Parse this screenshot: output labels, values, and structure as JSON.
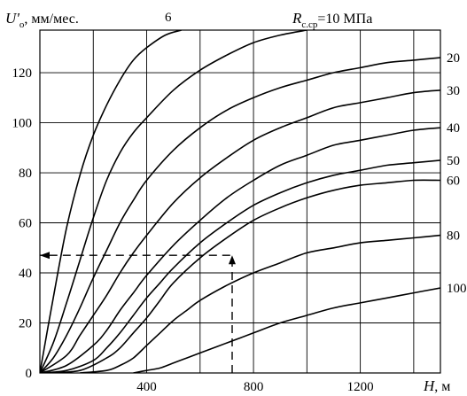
{
  "chart_data": {
    "type": "line",
    "title": "",
    "ylabel": {
      "symbol": "U'",
      "subscript": "о",
      "unit": ", мм/мес."
    },
    "xlabel": {
      "symbol": "H",
      "unit": ", м"
    },
    "annotation": {
      "symbol": "R",
      "subscript": "с.ср",
      "text": "=10 МПа"
    },
    "xlim": [
      0,
      1500
    ],
    "ylim": [
      0,
      137
    ],
    "x_ticks": [
      {
        "value": 400,
        "label": "400"
      },
      {
        "value": 800,
        "label": "800"
      },
      {
        "value": 1200,
        "label": "1200"
      }
    ],
    "y_ticks": [
      {
        "value": 0,
        "label": "0"
      },
      {
        "value": 20,
        "label": "20"
      },
      {
        "value": 40,
        "label": "40"
      },
      {
        "value": 60,
        "label": "60"
      },
      {
        "value": 80,
        "label": "80"
      },
      {
        "value": 100,
        "label": "100"
      },
      {
        "value": 120,
        "label": "120"
      }
    ],
    "grid": {
      "x_step": 200,
      "y_step": 20,
      "visible": true
    },
    "series": [
      {
        "name": "6",
        "label_anchor": "top",
        "points": [
          [
            0,
            0
          ],
          [
            50,
            30
          ],
          [
            100,
            58
          ],
          [
            150,
            79
          ],
          [
            200,
            95
          ],
          [
            250,
            107
          ],
          [
            300,
            117
          ],
          [
            350,
            125
          ],
          [
            400,
            130
          ],
          [
            470,
            135
          ],
          [
            530,
            137
          ]
        ]
      },
      {
        "name": "",
        "points": [
          [
            0,
            0
          ],
          [
            50,
            12
          ],
          [
            100,
            28
          ],
          [
            150,
            45
          ],
          [
            200,
            62
          ],
          [
            250,
            77
          ],
          [
            300,
            88
          ],
          [
            350,
            96
          ],
          [
            400,
            102
          ],
          [
            500,
            113
          ],
          [
            600,
            121
          ],
          [
            700,
            127
          ],
          [
            800,
            132
          ],
          [
            900,
            135
          ],
          [
            1000,
            137
          ]
        ]
      },
      {
        "name": "20",
        "points": [
          [
            0,
            0
          ],
          [
            50,
            6
          ],
          [
            100,
            15
          ],
          [
            150,
            26
          ],
          [
            200,
            38
          ],
          [
            250,
            49
          ],
          [
            300,
            60
          ],
          [
            350,
            69
          ],
          [
            400,
            77
          ],
          [
            500,
            89
          ],
          [
            600,
            98
          ],
          [
            700,
            105
          ],
          [
            800,
            110
          ],
          [
            900,
            114
          ],
          [
            1000,
            117
          ],
          [
            1100,
            120
          ],
          [
            1200,
            122
          ],
          [
            1300,
            124
          ],
          [
            1400,
            125
          ],
          [
            1500,
            126
          ]
        ]
      },
      {
        "name": "30",
        "points": [
          [
            0,
            0
          ],
          [
            100,
            7
          ],
          [
            150,
            15
          ],
          [
            200,
            23
          ],
          [
            250,
            31
          ],
          [
            300,
            40
          ],
          [
            350,
            48
          ],
          [
            400,
            55
          ],
          [
            500,
            68
          ],
          [
            600,
            78
          ],
          [
            700,
            86
          ],
          [
            800,
            93
          ],
          [
            900,
            98
          ],
          [
            1000,
            102
          ],
          [
            1100,
            106
          ],
          [
            1200,
            108
          ],
          [
            1300,
            110
          ],
          [
            1400,
            112
          ],
          [
            1500,
            113
          ]
        ]
      },
      {
        "name": "40",
        "points": [
          [
            0,
            0
          ],
          [
            100,
            3
          ],
          [
            200,
            11
          ],
          [
            250,
            17
          ],
          [
            300,
            25
          ],
          [
            350,
            32
          ],
          [
            400,
            39
          ],
          [
            500,
            51
          ],
          [
            600,
            61
          ],
          [
            700,
            70
          ],
          [
            800,
            77
          ],
          [
            900,
            83
          ],
          [
            1000,
            87
          ],
          [
            1100,
            91
          ],
          [
            1200,
            93
          ],
          [
            1300,
            95
          ],
          [
            1400,
            97
          ],
          [
            1500,
            98
          ]
        ]
      },
      {
        "name": "50",
        "points": [
          [
            0,
            0
          ],
          [
            100,
            1
          ],
          [
            200,
            5
          ],
          [
            250,
            10
          ],
          [
            300,
            16
          ],
          [
            350,
            23
          ],
          [
            400,
            30
          ],
          [
            450,
            36
          ],
          [
            500,
            42
          ],
          [
            600,
            52
          ],
          [
            700,
            60
          ],
          [
            800,
            67
          ],
          [
            900,
            72
          ],
          [
            1000,
            76
          ],
          [
            1100,
            79
          ],
          [
            1200,
            81
          ],
          [
            1300,
            83
          ],
          [
            1400,
            84
          ],
          [
            1500,
            85
          ]
        ]
      },
      {
        "name": "60",
        "points": [
          [
            30,
            0
          ],
          [
            150,
            1
          ],
          [
            250,
            6
          ],
          [
            300,
            10
          ],
          [
            350,
            16
          ],
          [
            400,
            22
          ],
          [
            450,
            29
          ],
          [
            500,
            36
          ],
          [
            600,
            46
          ],
          [
            700,
            54
          ],
          [
            800,
            61
          ],
          [
            900,
            66
          ],
          [
            1000,
            70
          ],
          [
            1100,
            73
          ],
          [
            1200,
            75
          ],
          [
            1300,
            76
          ],
          [
            1400,
            77
          ],
          [
            1500,
            77
          ]
        ]
      },
      {
        "name": "80",
        "points": [
          [
            150,
            0
          ],
          [
            250,
            1
          ],
          [
            300,
            3
          ],
          [
            350,
            6
          ],
          [
            400,
            11
          ],
          [
            450,
            16
          ],
          [
            500,
            21
          ],
          [
            550,
            25
          ],
          [
            600,
            29
          ],
          [
            700,
            35
          ],
          [
            800,
            40
          ],
          [
            900,
            44
          ],
          [
            1000,
            48
          ],
          [
            1100,
            50
          ],
          [
            1200,
            52
          ],
          [
            1300,
            53
          ],
          [
            1400,
            54
          ],
          [
            1500,
            55
          ]
        ]
      },
      {
        "name": "100",
        "points": [
          [
            350,
            0
          ],
          [
            400,
            1
          ],
          [
            450,
            2
          ],
          [
            500,
            4
          ],
          [
            550,
            6
          ],
          [
            600,
            8
          ],
          [
            700,
            12
          ],
          [
            800,
            16
          ],
          [
            900,
            20
          ],
          [
            1000,
            23
          ],
          [
            1100,
            26
          ],
          [
            1200,
            28
          ],
          [
            1300,
            30
          ],
          [
            1400,
            32
          ],
          [
            1500,
            34
          ]
        ]
      }
    ],
    "example_path": {
      "style": "dashed",
      "points": [
        [
          720,
          0
        ],
        [
          720,
          47
        ],
        [
          0,
          47
        ]
      ],
      "arrowheads": [
        "up",
        "left"
      ]
    }
  }
}
